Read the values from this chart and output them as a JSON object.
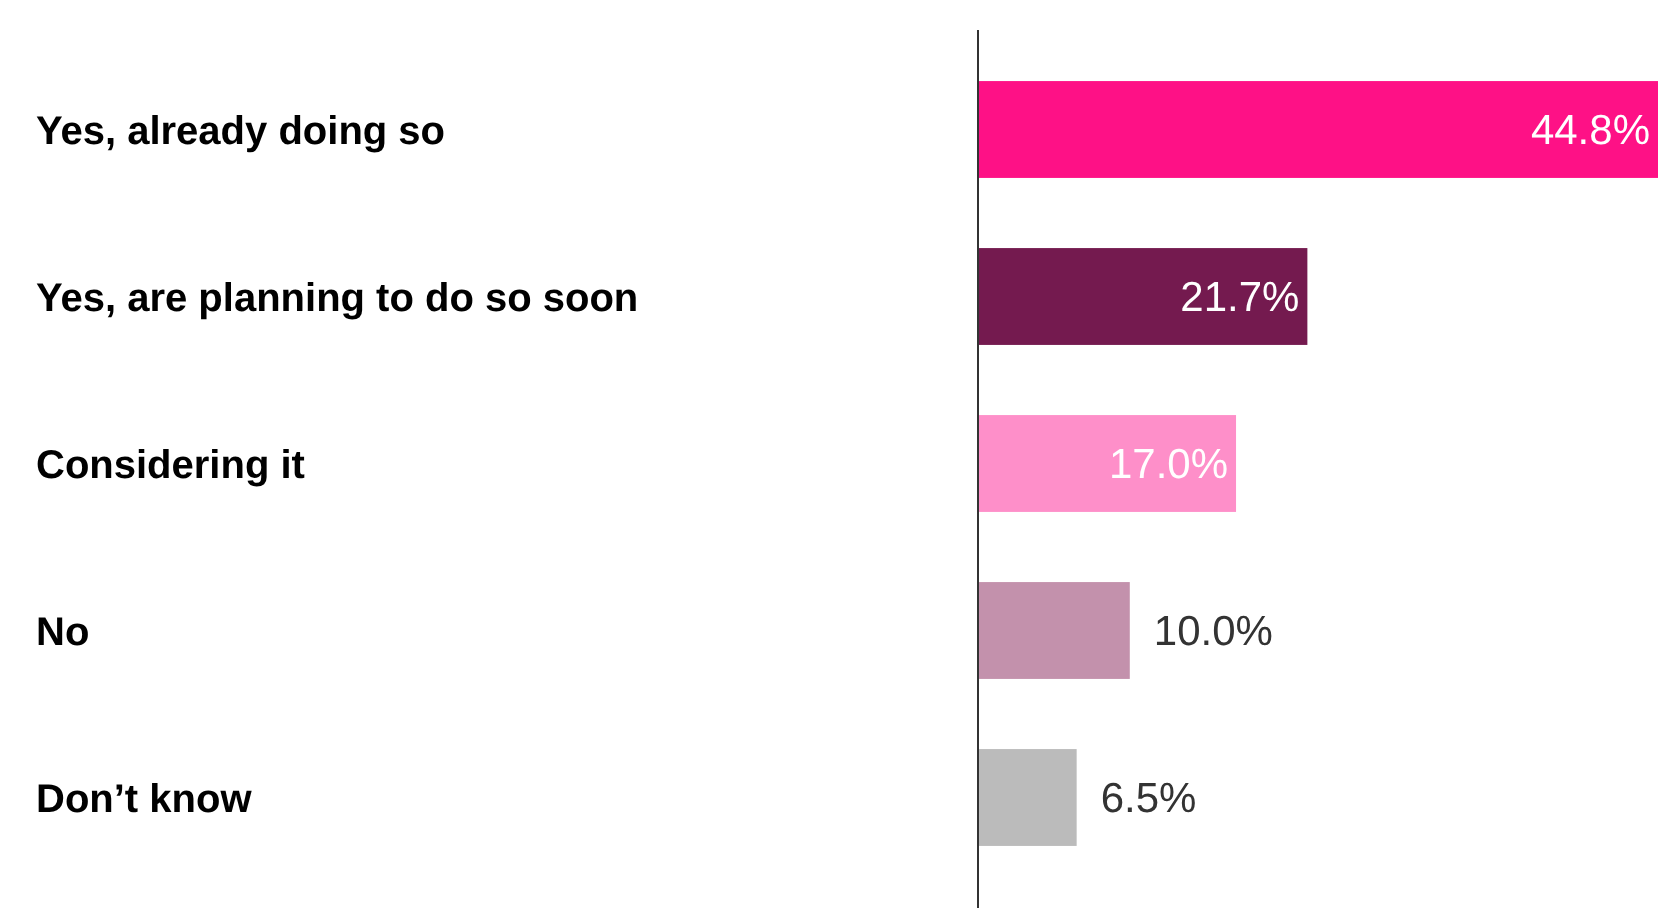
{
  "chart_data": {
    "type": "bar",
    "orientation": "horizontal",
    "categories": [
      "Yes, already doing so",
      "Yes, are planning to do so soon",
      "Considering it",
      "No",
      "Don’t know"
    ],
    "values": [
      44.8,
      21.7,
      17.0,
      10.0,
      6.5
    ],
    "colors": [
      "#fe1186",
      "#741a4f",
      "#fe8fc9",
      "#c391ac",
      "#bbbbbb"
    ],
    "value_labels": [
      "44.8%",
      "21.7%",
      "17.0%",
      "10.0%",
      "6.5%"
    ]
  }
}
